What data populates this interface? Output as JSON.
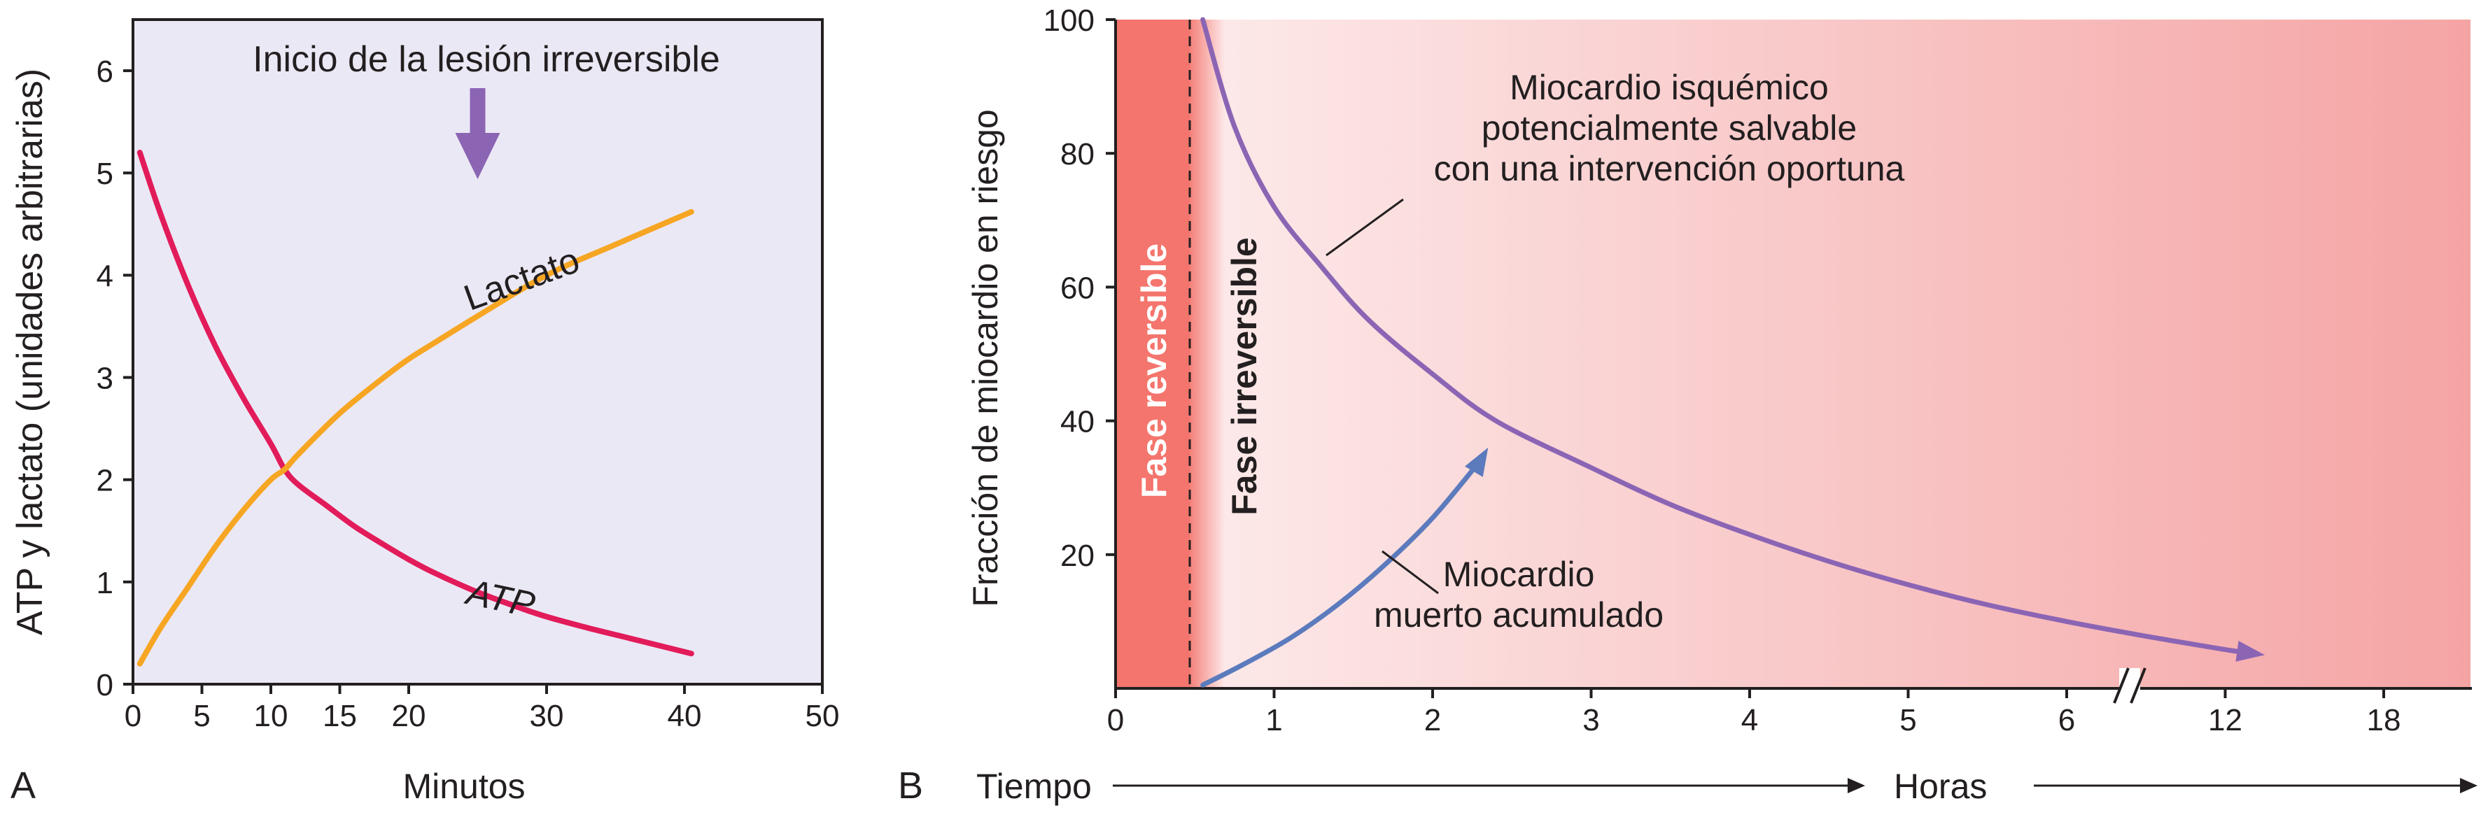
{
  "colors": {
    "panel_a_bg": "#ebe8f5",
    "atp": "#e21b5a",
    "lactate": "#f6a623",
    "arrow_purple": "#8b65b4",
    "reversible_band": "#f4756d",
    "irreversible_gradient_start": "#fdeeee",
    "irreversible_gradient_end": "#f5a4a4",
    "salvageable_curve": "#8b65b4",
    "dead_curve": "#5b7bbd",
    "axis": "#231f20"
  },
  "panel_a": {
    "label": "A",
    "annotation": "Inicio de la lesión irreversible",
    "annotation_arrow": "down-arrow-icon",
    "annotation_arrow_x": 25
  },
  "panel_b": {
    "label": "B",
    "band_reversible": "Fase reversible",
    "band_irreversible": "Fase irreversible",
    "annotation_salvageable": [
      "Miocardio isquémico",
      "potencialmente salvable",
      "con una intervención oportuna"
    ],
    "annotation_dead": [
      "Miocardio",
      "muerto acumulado"
    ],
    "time_label_left": "Tiempo",
    "time_label_right": "Horas",
    "axis_break": "//"
  },
  "chart_data": [
    {
      "type": "line",
      "title": "",
      "xlabel": "Minutos",
      "ylabel": "ATP y lactato (unidades arbitrarias)",
      "xlim": [
        0,
        50
      ],
      "ylim": [
        0,
        6.5
      ],
      "xticks": [
        0,
        5,
        10,
        15,
        20,
        30,
        40,
        50
      ],
      "yticks": [
        0,
        1,
        2,
        3,
        4,
        5,
        6
      ],
      "grid": false,
      "series": [
        {
          "name": "ATP",
          "x": [
            0.5,
            2,
            4,
            6,
            8,
            10,
            11,
            12,
            14,
            16,
            18,
            20,
            22,
            25,
            28,
            30,
            33,
            36,
            40.5
          ],
          "values": [
            5.2,
            4.6,
            3.9,
            3.3,
            2.8,
            2.35,
            2.1,
            1.95,
            1.75,
            1.55,
            1.38,
            1.22,
            1.08,
            0.9,
            0.75,
            0.66,
            0.55,
            0.45,
            0.3
          ]
        },
        {
          "name": "Lactato",
          "x": [
            0.5,
            2,
            4,
            6,
            8,
            10,
            11,
            12,
            15,
            18,
            20,
            22,
            25,
            30,
            35,
            40.5
          ],
          "values": [
            0.2,
            0.55,
            0.95,
            1.35,
            1.7,
            2.0,
            2.1,
            2.25,
            2.65,
            2.98,
            3.18,
            3.35,
            3.6,
            4.0,
            4.3,
            4.62
          ]
        }
      ]
    },
    {
      "type": "line",
      "title": "",
      "xlabel": "Tiempo → Horas",
      "ylabel": "Fracción de miocardio en riesgo",
      "ylim": [
        0,
        100
      ],
      "yticks": [
        20,
        40,
        60,
        80,
        100
      ],
      "xticks": [
        "0",
        "1",
        "2",
        "3",
        "4",
        "5",
        "6",
        "12",
        "18"
      ],
      "grid": false,
      "phase_boundary_hours": 0.5,
      "series": [
        {
          "name": "Miocardio isquémico potencialmente salvable con una intervención oportuna",
          "x": [
            0.55,
            0.75,
            1.0,
            1.3,
            1.6,
            2.0,
            2.4,
            3.0,
            3.5,
            4.0,
            4.5,
            5.0,
            5.5,
            6.0,
            6.5,
            7.0,
            7.25
          ],
          "values": [
            100,
            84,
            72,
            63,
            55,
            47,
            40,
            33,
            27.5,
            23,
            19,
            15.5,
            12.5,
            10,
            7.8,
            5.8,
            5
          ]
        },
        {
          "name": "Miocardio muerto acumulado",
          "x": [
            0.55,
            0.8,
            1.1,
            1.4,
            1.7,
            2.0,
            2.3,
            2.35
          ],
          "values": [
            0.5,
            3.5,
            7.5,
            12.5,
            18.5,
            25.5,
            34,
            36
          ]
        }
      ]
    }
  ]
}
